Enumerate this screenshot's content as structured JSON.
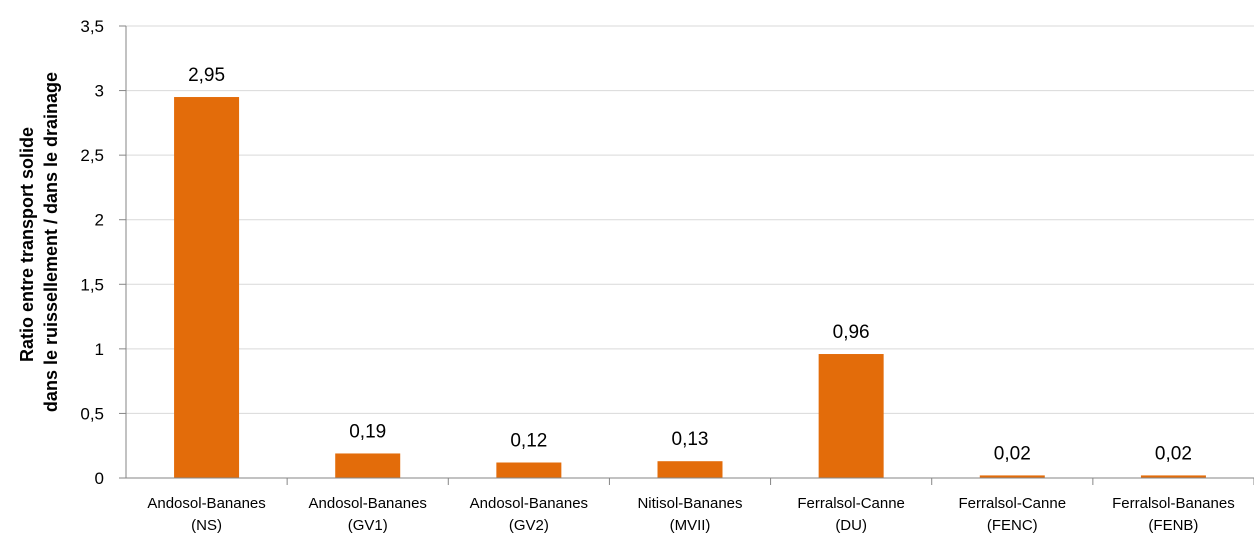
{
  "chart_data": {
    "type": "bar",
    "categories": [
      [
        "Andosol-Bananes",
        "(NS)"
      ],
      [
        "Andosol-Bananes",
        "(GV1)"
      ],
      [
        "Andosol-Bananes",
        "(GV2)"
      ],
      [
        "Nitisol-Bananes",
        "(MVII)"
      ],
      [
        "Ferralsol-Canne",
        "(DU)"
      ],
      [
        "Ferralsol-Canne",
        "(FENC)"
      ],
      [
        "Ferralsol-Bananes",
        "(FENB)"
      ]
    ],
    "values": [
      2.95,
      0.19,
      0.12,
      0.13,
      0.96,
      0.02,
      0.02
    ],
    "value_labels": [
      "2,95",
      "0,19",
      "0,12",
      "0,13",
      "0,96",
      "0,02",
      "0,02"
    ],
    "ylabel_lines": [
      "Ratio entre transport solide",
      "dans le ruissellement / dans le drainage"
    ],
    "yticks": [
      0,
      0.5,
      1,
      1.5,
      2,
      2.5,
      3,
      3.5
    ],
    "ytick_labels": [
      "0",
      "0,5",
      "1",
      "1,5",
      "2",
      "2,5",
      "3",
      "3,5"
    ],
    "ylim": [
      0,
      3.5
    ],
    "grid": true,
    "bar_color": "#E36C0A",
    "grid_color": "#D9D9D9",
    "axis_color": "#868686"
  }
}
